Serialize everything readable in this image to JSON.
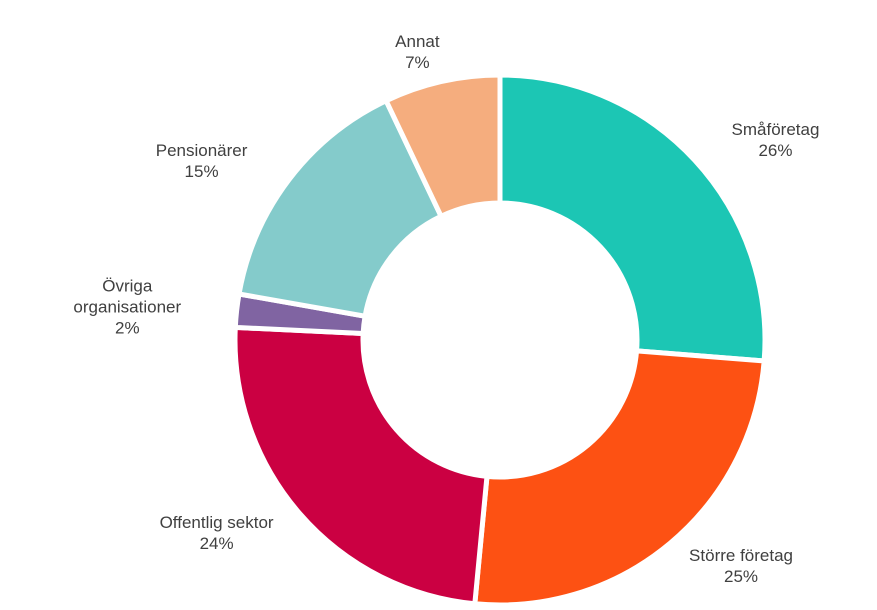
{
  "chart_data": {
    "type": "donut",
    "categories": [
      "Småföretag",
      "Större företag",
      "Offentlig sektor",
      "Övriga organisationer",
      "Pensionärer",
      "Annat"
    ],
    "values": [
      26,
      25,
      24,
      2,
      15,
      7
    ],
    "value_labels": [
      "26%",
      "25%",
      "24%",
      "2%",
      "15%",
      "7%"
    ],
    "colors": [
      "#1cc6b4",
      "#fd5113",
      "#cb0042",
      "#8064a2",
      "#84cbcb",
      "#f5ad7e"
    ]
  }
}
